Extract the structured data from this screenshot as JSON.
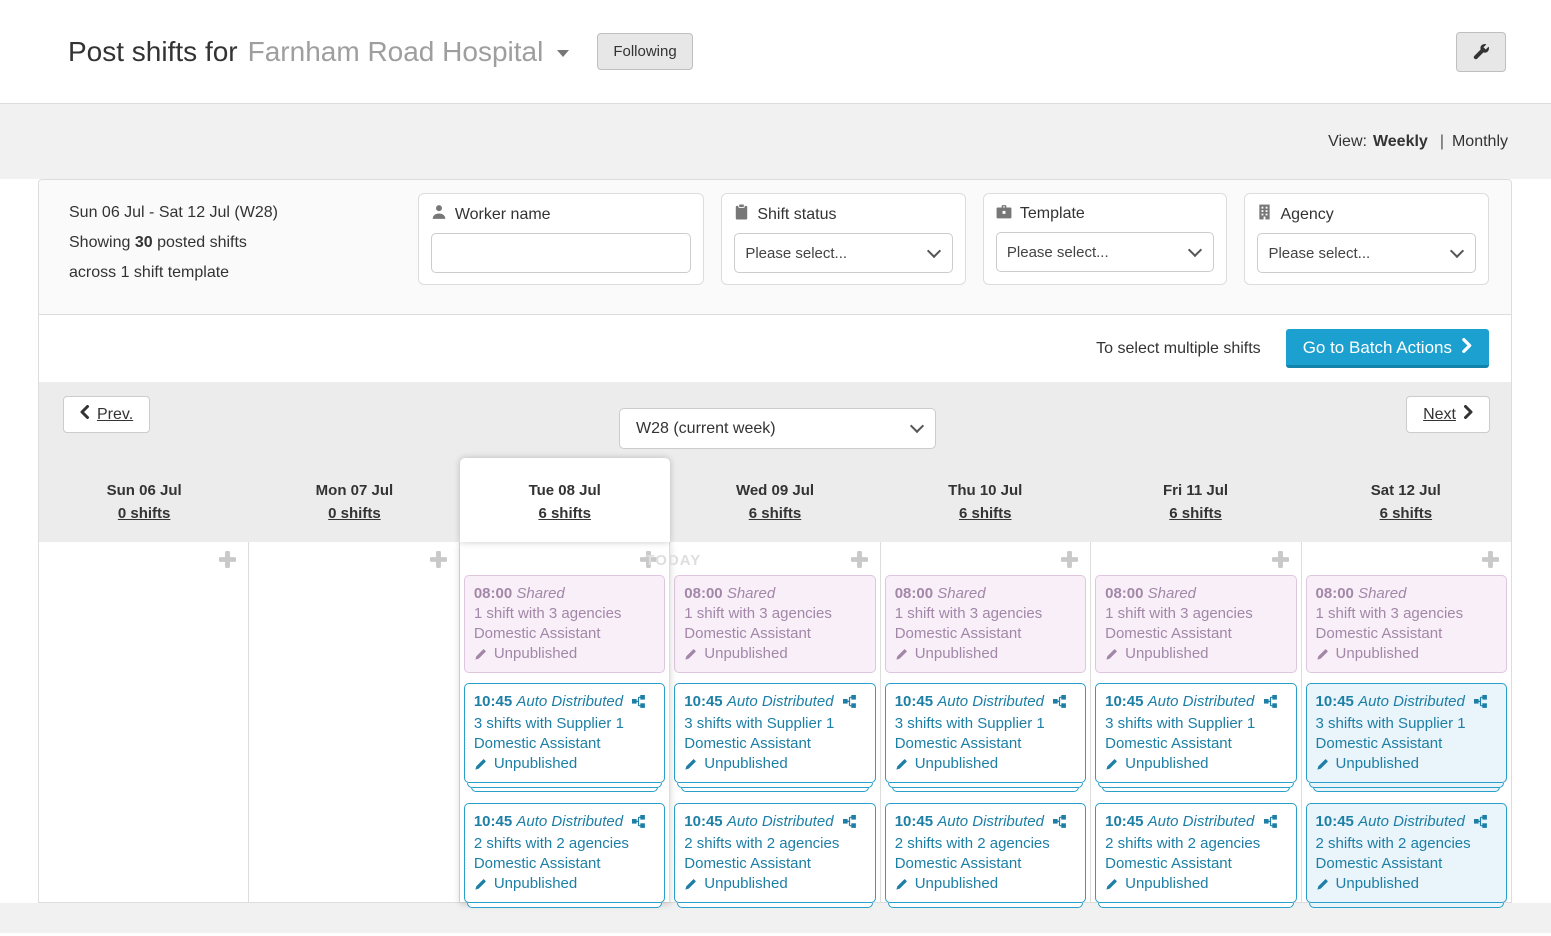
{
  "header": {
    "title_prefix": "Post shifts for",
    "hospital_name": "Farnham Road Hospital",
    "following_button": "Following"
  },
  "view_bar": {
    "prefix": "View:",
    "weekly_label": "Weekly",
    "divider": "|",
    "monthly_label": "Monthly"
  },
  "filter_panel": {
    "date_range": "Sun 06 Jul - Sat 12 Jul (W28)",
    "showing_prefix": "Showing",
    "showing_count": "30",
    "showing_suffix": "posted shifts",
    "across_line": "across 1 shift template",
    "worker": {
      "label": "Worker name",
      "value": ""
    },
    "status": {
      "label": "Shift status",
      "selected_option": "Please select..."
    },
    "template": {
      "label": "Template",
      "selected_option": "Please select..."
    },
    "agency": {
      "label": "Agency",
      "selected_option": "Please select..."
    }
  },
  "batch_bar": {
    "hint_text": "To select multiple shifts",
    "button_label": "Go to Batch Actions"
  },
  "week_nav": {
    "prev_label": "Prev.",
    "week_selector": "W28 (current week)",
    "next_label": "Next"
  },
  "calendar": {
    "today_badge": "TODAY",
    "days": [
      {
        "name": "Sun 06 Jul",
        "shifts_link": "0 shifts",
        "is_today": false,
        "tinted": false,
        "cards": []
      },
      {
        "name": "Mon 07 Jul",
        "shifts_link": "0 shifts",
        "is_today": false,
        "tinted": false,
        "cards": []
      },
      {
        "name": "Tue 08 Jul",
        "shifts_link": "6 shifts",
        "is_today": true,
        "tinted": false,
        "cards": [
          {
            "time": "08:00",
            "kind": "Shared",
            "detail": "1 shift with 3 agencies",
            "role": "Domestic Assistant",
            "status": "Unpublished",
            "variant": "shared",
            "stack": 0
          },
          {
            "time": "10:45",
            "kind": "Auto Distributed",
            "detail": "3 shifts with Supplier 1",
            "role": "Domestic Assistant",
            "status": "Unpublished",
            "variant": "auto",
            "stack": 2
          },
          {
            "time": "10:45",
            "kind": "Auto Distributed",
            "detail": "2 shifts with 2 agencies",
            "role": "Domestic Assistant",
            "status": "Unpublished",
            "variant": "auto",
            "stack": 1
          }
        ]
      },
      {
        "name": "Wed 09 Jul",
        "shifts_link": "6 shifts",
        "is_today": false,
        "tinted": false,
        "cards": [
          {
            "time": "08:00",
            "kind": "Shared",
            "detail": "1 shift with 3 agencies",
            "role": "Domestic Assistant",
            "status": "Unpublished",
            "variant": "shared",
            "stack": 0
          },
          {
            "time": "10:45",
            "kind": "Auto Distributed",
            "detail": "3 shifts with Supplier 1",
            "role": "Domestic Assistant",
            "status": "Unpublished",
            "variant": "auto",
            "stack": 2
          },
          {
            "time": "10:45",
            "kind": "Auto Distributed",
            "detail": "2 shifts with 2 agencies",
            "role": "Domestic Assistant",
            "status": "Unpublished",
            "variant": "auto",
            "stack": 1
          }
        ]
      },
      {
        "name": "Thu 10 Jul",
        "shifts_link": "6 shifts",
        "is_today": false,
        "tinted": false,
        "cards": [
          {
            "time": "08:00",
            "kind": "Shared",
            "detail": "1 shift with 3 agencies",
            "role": "Domestic Assistant",
            "status": "Unpublished",
            "variant": "shared",
            "stack": 0
          },
          {
            "time": "10:45",
            "kind": "Auto Distributed",
            "detail": "3 shifts with Supplier 1",
            "role": "Domestic Assistant",
            "status": "Unpublished",
            "variant": "auto",
            "stack": 2
          },
          {
            "time": "10:45",
            "kind": "Auto Distributed",
            "detail": "2 shifts with 2 agencies",
            "role": "Domestic Assistant",
            "status": "Unpublished",
            "variant": "auto",
            "stack": 1
          }
        ]
      },
      {
        "name": "Fri 11 Jul",
        "shifts_link": "6 shifts",
        "is_today": false,
        "tinted": false,
        "cards": [
          {
            "time": "08:00",
            "kind": "Shared",
            "detail": "1 shift with 3 agencies",
            "role": "Domestic Assistant",
            "status": "Unpublished",
            "variant": "shared",
            "stack": 0
          },
          {
            "time": "10:45",
            "kind": "Auto Distributed",
            "detail": "3 shifts with Supplier 1",
            "role": "Domestic Assistant",
            "status": "Unpublished",
            "variant": "auto",
            "stack": 2
          },
          {
            "time": "10:45",
            "kind": "Auto Distributed",
            "detail": "2 shifts with 2 agencies",
            "role": "Domestic Assistant",
            "status": "Unpublished",
            "variant": "auto",
            "stack": 1
          }
        ]
      },
      {
        "name": "Sat 12 Jul",
        "shifts_link": "6 shifts",
        "is_today": false,
        "tinted": true,
        "cards": [
          {
            "time": "08:00",
            "kind": "Shared",
            "detail": "1 shift with 3 agencies",
            "role": "Domestic Assistant",
            "status": "Unpublished",
            "variant": "shared",
            "stack": 0
          },
          {
            "time": "10:45",
            "kind": "Auto Distributed",
            "detail": "3 shifts with Supplier 1",
            "role": "Domestic Assistant",
            "status": "Unpublished",
            "variant": "auto",
            "stack": 2
          },
          {
            "time": "10:45",
            "kind": "Auto Distributed",
            "detail": "2 shifts with 2 agencies",
            "role": "Domestic Assistant",
            "status": "Unpublished",
            "variant": "auto",
            "stack": 1
          }
        ]
      }
    ]
  },
  "icons": {
    "header_action": "wrench-icon",
    "title": "caret-down-icon",
    "worker": "person-icon",
    "status": "clipboard-icon",
    "template": "briefcase-icon",
    "agency": "building-icon",
    "add_shift": "plus-icon",
    "edit_status": "pencil-icon",
    "auto_distribution": "distribution-icon",
    "prev": "chevron-left-icon",
    "next": "chevron-right-icon",
    "batch": "chevron-right-icon"
  },
  "colors": {
    "accent_blue": "#1ba0cf",
    "accent_blue_dark": "#1284ab",
    "shared_text": "#a287a8",
    "shared_border": "#dfc6df",
    "shared_bg": "#f9eff8",
    "auto_text": "#1d7fa6",
    "auto_border": "#2a9fc9",
    "auto_bg_tinted": "#e9f4fb",
    "band_gray": "#ececec",
    "page_band": "#f1f1f1"
  }
}
